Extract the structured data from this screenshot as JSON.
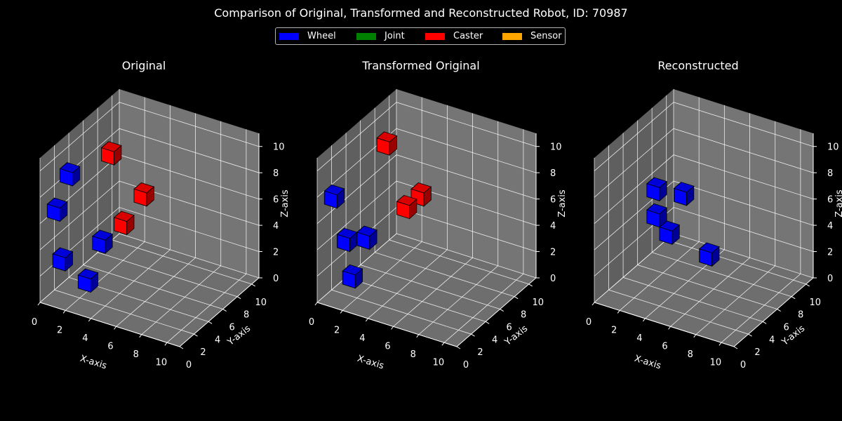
{
  "title": "Comparison of Original, Transformed and Reconstructed Robot, ID: 70987",
  "legend": [
    {
      "label": "Wheel",
      "color": "#0000ff"
    },
    {
      "label": "Joint",
      "color": "#008000"
    },
    {
      "label": "Caster",
      "color": "#ff0000"
    },
    {
      "label": "Sensor",
      "color": "#ffa500"
    }
  ],
  "chart_data": [
    {
      "type": "scatter",
      "title": "Original",
      "xlabel": "X-axis",
      "ylabel": "Y-axis",
      "zlabel": "Z-axis",
      "xlim": [
        0,
        11
      ],
      "ylim": [
        0,
        11
      ],
      "zlim": [
        0,
        11
      ],
      "x_ticks": [
        0,
        2,
        4,
        6,
        8,
        10
      ],
      "y_ticks": [
        0,
        2,
        4,
        6,
        8,
        10
      ],
      "z_ticks": [
        0,
        2,
        4,
        6,
        8,
        10
      ],
      "points": [
        {
          "part": "Wheel",
          "x": 1,
          "y": 1,
          "z": 9
        },
        {
          "part": "Wheel",
          "x": 0,
          "y": 1,
          "z": 6
        },
        {
          "part": "Wheel",
          "x": 1,
          "y": 0,
          "z": 3
        },
        {
          "part": "Wheel",
          "x": 3,
          "y": 0,
          "z": 2
        },
        {
          "part": "Wheel",
          "x": 3,
          "y": 2,
          "z": 4
        },
        {
          "part": "Caster",
          "x": 2,
          "y": 5,
          "z": 9
        },
        {
          "part": "Caster",
          "x": 3,
          "y": 5,
          "z": 4
        },
        {
          "part": "Caster",
          "x": 4,
          "y": 6,
          "z": 6
        }
      ]
    },
    {
      "type": "scatter",
      "title": "Transformed Original",
      "xlabel": "X-axis",
      "ylabel": "Y-axis",
      "zlabel": "Z-axis",
      "xlim": [
        0,
        11
      ],
      "ylim": [
        0,
        11
      ],
      "zlim": [
        0,
        11
      ],
      "x_ticks": [
        0,
        2,
        4,
        6,
        8,
        10
      ],
      "y_ticks": [
        0,
        2,
        4,
        6,
        8,
        10
      ],
      "z_ticks": [
        0,
        2,
        4,
        6,
        8,
        10
      ],
      "points": [
        {
          "part": "Wheel",
          "x": 0,
          "y": 1,
          "z": 7
        },
        {
          "part": "Wheel",
          "x": 1,
          "y": 1,
          "z": 4
        },
        {
          "part": "Wheel",
          "x": 2,
          "y": 0,
          "z": 2
        },
        {
          "part": "Wheel",
          "x": 2,
          "y": 2,
          "z": 4
        },
        {
          "part": "Caster",
          "x": 3,
          "y": 3,
          "z": 11
        },
        {
          "part": "Caster",
          "x": 4,
          "y": 4,
          "z": 6
        },
        {
          "part": "Caster",
          "x": 4,
          "y": 6,
          "z": 6
        }
      ]
    },
    {
      "type": "scatter",
      "title": "Reconstructed",
      "xlabel": "X-axis",
      "ylabel": "Y-axis",
      "zlabel": "Z-axis",
      "xlim": [
        0,
        11
      ],
      "ylim": [
        0,
        11
      ],
      "zlim": [
        0,
        11
      ],
      "x_ticks": [
        0,
        2,
        4,
        6,
        8,
        10
      ],
      "y_ticks": [
        0,
        2,
        4,
        6,
        8,
        10
      ],
      "z_ticks": [
        0,
        2,
        4,
        6,
        8,
        10
      ],
      "points": [
        {
          "part": "Wheel",
          "x": 3,
          "y": 2,
          "z": 8
        },
        {
          "part": "Wheel",
          "x": 3,
          "y": 2,
          "z": 6
        },
        {
          "part": "Wheel",
          "x": 4,
          "y": 2,
          "z": 5
        },
        {
          "part": "Wheel",
          "x": 4,
          "y": 4,
          "z": 7
        },
        {
          "part": "Wheel",
          "x": 6,
          "y": 4,
          "z": 3
        }
      ]
    }
  ]
}
